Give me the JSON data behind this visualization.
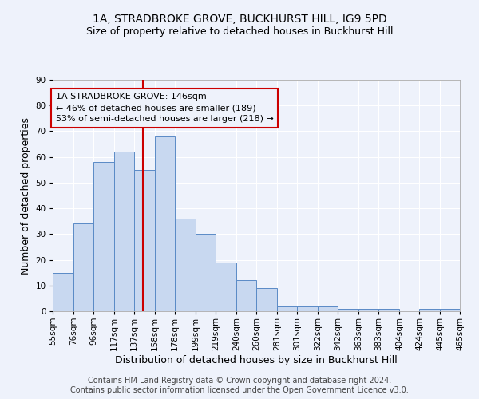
{
  "title": "1A, STRADBROKE GROVE, BUCKHURST HILL, IG9 5PD",
  "subtitle": "Size of property relative to detached houses in Buckhurst Hill",
  "xlabel": "Distribution of detached houses by size in Buckhurst Hill",
  "ylabel": "Number of detached properties",
  "bin_edges": [
    55,
    76,
    96,
    117,
    137,
    158,
    178,
    199,
    219,
    240,
    260,
    281,
    301,
    322,
    342,
    363,
    383,
    404,
    424,
    445,
    465
  ],
  "bar_heights": [
    15,
    34,
    58,
    62,
    55,
    68,
    36,
    30,
    19,
    12,
    9,
    2,
    2,
    2,
    1,
    1,
    1,
    0,
    1,
    1
  ],
  "bar_color": "#c8d8f0",
  "bar_edge_color": "#5a8ac6",
  "property_line_x": 146,
  "property_line_color": "#cc0000",
  "annotation_text": "1A STRADBROKE GROVE: 146sqm\n← 46% of detached houses are smaller (189)\n53% of semi-detached houses are larger (218) →",
  "annotation_box_color": "#cc0000",
  "ylim": [
    0,
    90
  ],
  "yticks": [
    0,
    10,
    20,
    30,
    40,
    50,
    60,
    70,
    80,
    90
  ],
  "tick_labels": [
    "55sqm",
    "76sqm",
    "96sqm",
    "117sqm",
    "137sqm",
    "158sqm",
    "178sqm",
    "199sqm",
    "219sqm",
    "240sqm",
    "260sqm",
    "281sqm",
    "301sqm",
    "322sqm",
    "342sqm",
    "363sqm",
    "383sqm",
    "404sqm",
    "424sqm",
    "445sqm",
    "465sqm"
  ],
  "footer_line1": "Contains HM Land Registry data © Crown copyright and database right 2024.",
  "footer_line2": "Contains public sector information licensed under the Open Government Licence v3.0.",
  "background_color": "#eef2fb",
  "plot_bg_color": "#eef2fb",
  "grid_color": "#ffffff",
  "title_fontsize": 10,
  "subtitle_fontsize": 9,
  "axis_label_fontsize": 9,
  "tick_fontsize": 7.5,
  "annotation_fontsize": 8,
  "footer_fontsize": 7
}
